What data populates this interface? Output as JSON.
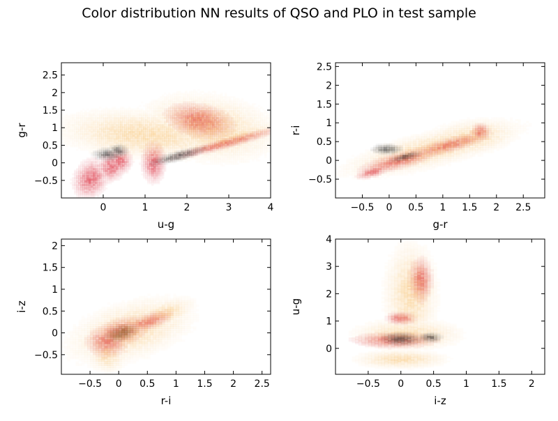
{
  "figure": {
    "title": "Color distribution NN results of QSO and PLO in test sample"
  },
  "chart_data": [
    {
      "type": "heatmap",
      "xlabel": "u-g",
      "ylabel": "g-r",
      "xlim": [
        -1.0,
        4.0
      ],
      "ylim": [
        -1.0,
        2.85
      ],
      "xticks": [
        0,
        1,
        2,
        3,
        4
      ],
      "yticks": [
        -0.5,
        0.0,
        0.5,
        1.0,
        1.5,
        2.0,
        2.5
      ],
      "grid": false,
      "series": [
        {
          "name": "",
          "color": "#dd3b4a",
          "points": [
            [
              -0.3,
              -0.45,
              0.35,
              0.5,
              -18
            ],
            [
              0.2,
              -0.1,
              0.3,
              0.4,
              -30
            ],
            [
              1.2,
              0.0,
              0.25,
              0.5,
              0
            ],
            [
              2.3,
              1.2,
              0.7,
              0.4,
              -15
            ],
            [
              2.9,
              0.55,
              1.2,
              0.12,
              18
            ],
            [
              0.4,
              0.05,
              0.25,
              0.3,
              0
            ]
          ]
        },
        {
          "name": "",
          "color": "#f6b24a",
          "points": [
            [
              2.5,
              1.0,
              1.4,
              0.8,
              -10
            ],
            [
              1.0,
              0.8,
              1.8,
              0.6,
              -5
            ],
            [
              3.0,
              0.7,
              1.2,
              0.3,
              15
            ]
          ]
        },
        {
          "name": "",
          "color": "#333333",
          "points": [
            [
              0.1,
              0.25,
              0.3,
              0.15,
              0
            ],
            [
              0.35,
              0.35,
              0.2,
              0.15,
              0
            ],
            [
              1.8,
              0.2,
              0.6,
              0.12,
              18
            ]
          ]
        }
      ]
    },
    {
      "type": "heatmap",
      "xlabel": "g-r",
      "ylabel": "r-i",
      "xlim": [
        -1.0,
        2.9
      ],
      "ylim": [
        -1.0,
        2.6
      ],
      "xticks": [
        -0.5,
        0.0,
        0.5,
        1.0,
        1.5,
        2.0,
        2.5
      ],
      "yticks": [
        -0.5,
        0.0,
        0.5,
        1.0,
        1.5,
        2.0,
        2.5
      ],
      "grid": false,
      "series": [
        {
          "name": "",
          "color": "#dd3b4a",
          "points": [
            [
              0.2,
              0.0,
              0.7,
              0.18,
              22
            ],
            [
              1.1,
              0.4,
              0.7,
              0.15,
              22
            ],
            [
              -0.3,
              -0.3,
              0.3,
              0.12,
              25
            ],
            [
              1.7,
              0.75,
              0.15,
              0.2,
              0
            ]
          ]
        },
        {
          "name": "",
          "color": "#f6b24a",
          "points": [
            [
              0.8,
              0.3,
              1.5,
              0.4,
              20
            ],
            [
              1.5,
              0.6,
              0.8,
              0.4,
              15
            ]
          ]
        },
        {
          "name": "",
          "color": "#333333",
          "points": [
            [
              -0.05,
              0.3,
              0.25,
              0.12,
              0
            ],
            [
              0.3,
              0.1,
              0.25,
              0.08,
              20
            ]
          ]
        }
      ]
    },
    {
      "type": "heatmap",
      "xlabel": "r-i",
      "ylabel": "i-z",
      "xlim": [
        -1.0,
        2.65
      ],
      "ylim": [
        -0.95,
        2.15
      ],
      "xticks": [
        -0.5,
        0.0,
        0.5,
        1.0,
        1.5,
        2.0,
        2.5
      ],
      "yticks": [
        -0.5,
        0.0,
        0.5,
        1.0,
        1.5,
        2.0
      ],
      "grid": false,
      "series": [
        {
          "name": "",
          "color": "#dd3b4a",
          "points": [
            [
              0.0,
              0.0,
              0.5,
              0.25,
              25
            ],
            [
              -0.2,
              -0.2,
              0.3,
              0.3,
              0
            ],
            [
              0.5,
              0.25,
              0.4,
              0.15,
              25
            ],
            [
              0.0,
              0.0,
              0.3,
              0.2,
              25
            ]
          ]
        },
        {
          "name": "",
          "color": "#f6b24a",
          "points": [
            [
              0.2,
              0.05,
              1.0,
              0.55,
              25
            ],
            [
              -0.2,
              -0.5,
              0.3,
              0.35,
              0
            ],
            [
              0.8,
              0.45,
              0.5,
              0.25,
              25
            ]
          ]
        },
        {
          "name": "",
          "color": "#7a5a2a",
          "points": [
            [
              0.05,
              0.0,
              0.25,
              0.15,
              25
            ]
          ]
        }
      ]
    },
    {
      "type": "heatmap",
      "xlabel": "i-z",
      "ylabel": "u-g",
      "xlim": [
        -1.0,
        2.2
      ],
      "ylim": [
        -0.95,
        4.0
      ],
      "xticks": [
        -0.5,
        0.0,
        0.5,
        1.0,
        1.5,
        2.0
      ],
      "yticks": [
        0,
        1,
        2,
        3,
        4
      ],
      "grid": false,
      "series": [
        {
          "name": "",
          "color": "#dd3b4a",
          "points": [
            [
              -0.1,
              0.3,
              0.55,
              0.25,
              0
            ],
            [
              0.3,
              2.5,
              0.15,
              0.7,
              0
            ],
            [
              0.0,
              1.1,
              0.2,
              0.2,
              0
            ]
          ]
        },
        {
          "name": "",
          "color": "#f6b24a",
          "points": [
            [
              0.1,
              0.5,
              0.7,
              0.5,
              0
            ],
            [
              0.15,
              2.0,
              0.35,
              1.6,
              0
            ],
            [
              0.0,
              -0.4,
              0.6,
              0.3,
              0
            ]
          ]
        },
        {
          "name": "",
          "color": "#333333",
          "points": [
            [
              0.0,
              0.35,
              0.25,
              0.2,
              0
            ],
            [
              0.45,
              0.4,
              0.15,
              0.15,
              0
            ]
          ]
        }
      ]
    }
  ]
}
